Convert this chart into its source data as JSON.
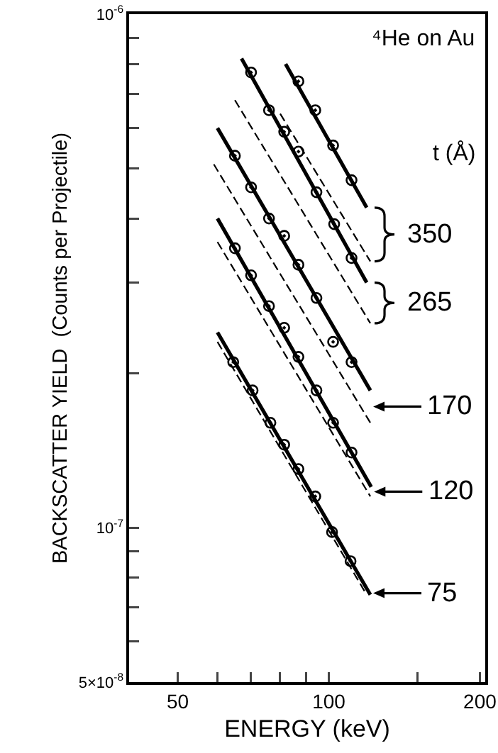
{
  "chart_data": {
    "type": "scatter",
    "xlabel": "ENERGY (keV)",
    "ylabel": "BACKSCATTER YIELD  (Counts per Projectile)",
    "log": "xy",
    "grid": false,
    "xlim": [
      40,
      205
    ],
    "xticks": [
      50,
      {
        "value": 60,
        "label": null
      },
      {
        "value": 70,
        "label": null
      },
      {
        "value": 80,
        "label": null
      },
      {
        "value": 90,
        "label": null
      },
      100,
      {
        "value": 150,
        "label": null
      },
      200
    ],
    "ylim": [
      5e-08,
      1e-06
    ],
    "yticks": [
      {
        "value": 5e-08,
        "label": "5×10$^{-8}$"
      },
      {
        "value": 6e-08,
        "label": null
      },
      {
        "value": 7e-08,
        "label": null
      },
      {
        "value": 8e-08,
        "label": null
      },
      {
        "value": 9e-08,
        "label": null
      },
      {
        "value": 1e-07,
        "label": "10$^{-7}$"
      },
      {
        "value": 2e-07,
        "label": null
      },
      {
        "value": 3e-07,
        "label": null
      },
      {
        "value": 4e-07,
        "label": null
      },
      {
        "value": 5e-07,
        "label": null
      },
      {
        "value": 6e-07,
        "label": null
      },
      {
        "value": 7e-07,
        "label": null
      },
      {
        "value": 8e-07,
        "label": null
      },
      {
        "value": 9e-07,
        "label": null
      },
      {
        "value": 1e-06,
        "label": "10$^{-6}$"
      }
    ],
    "series": [
      {
        "type": "scatter",
        "marker": "circle",
        "color": "#000000",
        "x": [
          87,
          94,
          102,
          111
        ],
        "values": [
          7.4e-07,
          6.5e-07,
          5.55e-07,
          4.75e-07
        ]
      },
      {
        "type": "line",
        "line_style": "solid",
        "color": "#000000",
        "x": [
          82,
          119
        ],
        "values": [
          8e-07,
          4.2e-07
        ]
      },
      {
        "type": "line",
        "line_style": "dashed",
        "color": "#000000",
        "x": [
          80,
          121
        ],
        "values": [
          6.4e-07,
          3.3e-07
        ]
      },
      {
        "type": "scatter",
        "marker": "circle",
        "color": "#000000",
        "x": [
          70,
          76,
          81.5,
          87,
          94.5,
          102.5,
          111
        ],
        "values": [
          7.7e-07,
          6.5e-07,
          5.9e-07,
          5.4e-07,
          4.5e-07,
          3.9e-07,
          3.35e-07
        ]
      },
      {
        "type": "line",
        "line_style": "solid",
        "color": "#000000",
        "x": [
          67,
          119
        ],
        "values": [
          8.2e-07,
          3e-07
        ]
      },
      {
        "type": "line",
        "line_style": "dashed",
        "color": "#000000",
        "x": [
          65,
          121
        ],
        "values": [
          6.8e-07,
          2.5e-07
        ]
      },
      {
        "type": "scatter",
        "marker": "circle",
        "color": "#000000",
        "x": [
          65,
          70,
          76,
          81.5,
          87,
          94.5,
          102,
          111
        ],
        "values": [
          5.3e-07,
          4.6e-07,
          4e-07,
          3.7e-07,
          3.25e-07,
          2.8e-07,
          2.3e-07,
          2.1e-07
        ]
      },
      {
        "type": "line",
        "line_style": "solid",
        "color": "#000000",
        "x": [
          60,
          121
        ],
        "values": [
          6e-07,
          1.85e-07
        ]
      },
      {
        "type": "line",
        "line_style": "dashed",
        "color": "#000000",
        "x": [
          59,
          121
        ],
        "values": [
          5.1e-07,
          1.6e-07
        ]
      },
      {
        "type": "scatter",
        "marker": "circle",
        "color": "#000000",
        "x": [
          65,
          70,
          76,
          81.5,
          87,
          94.5,
          102,
          111
        ],
        "values": [
          3.5e-07,
          3.1e-07,
          2.7e-07,
          2.45e-07,
          2.15e-07,
          1.85e-07,
          1.6e-07,
          1.4e-07
        ]
      },
      {
        "type": "line",
        "line_style": "solid",
        "color": "#000000",
        "x": [
          60,
          121.5
        ],
        "values": [
          4e-07,
          1.2e-07
        ]
      },
      {
        "type": "line",
        "line_style": "dashed",
        "color": "#000000",
        "x": [
          60,
          121
        ],
        "values": [
          3.6e-07,
          1.15e-07
        ]
      },
      {
        "type": "scatter",
        "marker": "circle",
        "color": "#000000",
        "x": [
          64.5,
          70.5,
          76.5,
          81.5,
          87,
          94,
          101.5,
          110.5
        ],
        "values": [
          2.1e-07,
          1.85e-07,
          1.6e-07,
          1.45e-07,
          1.3e-07,
          1.15e-07,
          9.8e-08,
          8.6e-08
        ]
      },
      {
        "type": "line",
        "line_style": "solid",
        "color": "#000000",
        "x": [
          60,
          121
        ],
        "values": [
          2.4e-07,
          7.4e-08
        ]
      },
      {
        "type": "line",
        "line_style": "dashed",
        "color": "#000000",
        "x": [
          60,
          118
        ],
        "values": [
          2.3e-07,
          7.5e-08
        ]
      }
    ],
    "annotations": [
      "⁴He on Au",
      "t (Å)",
      "350",
      "265",
      "170",
      "120",
      "75"
    ]
  }
}
